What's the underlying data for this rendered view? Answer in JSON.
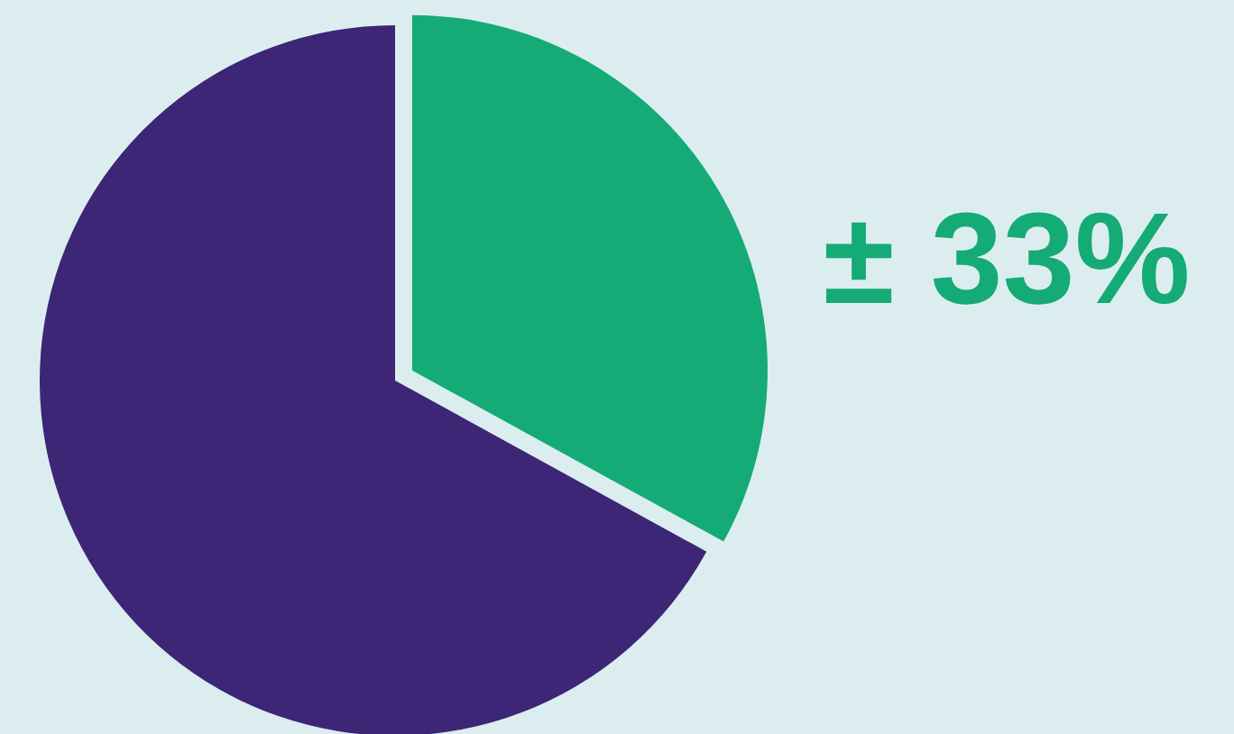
{
  "chart_data": {
    "type": "pie",
    "categories": [
      null,
      null
    ],
    "values": [
      33,
      67
    ],
    "colors": [
      "#14ab76",
      "#3d2675"
    ],
    "value_labels": [
      "± 33%",
      null
    ]
  }
}
